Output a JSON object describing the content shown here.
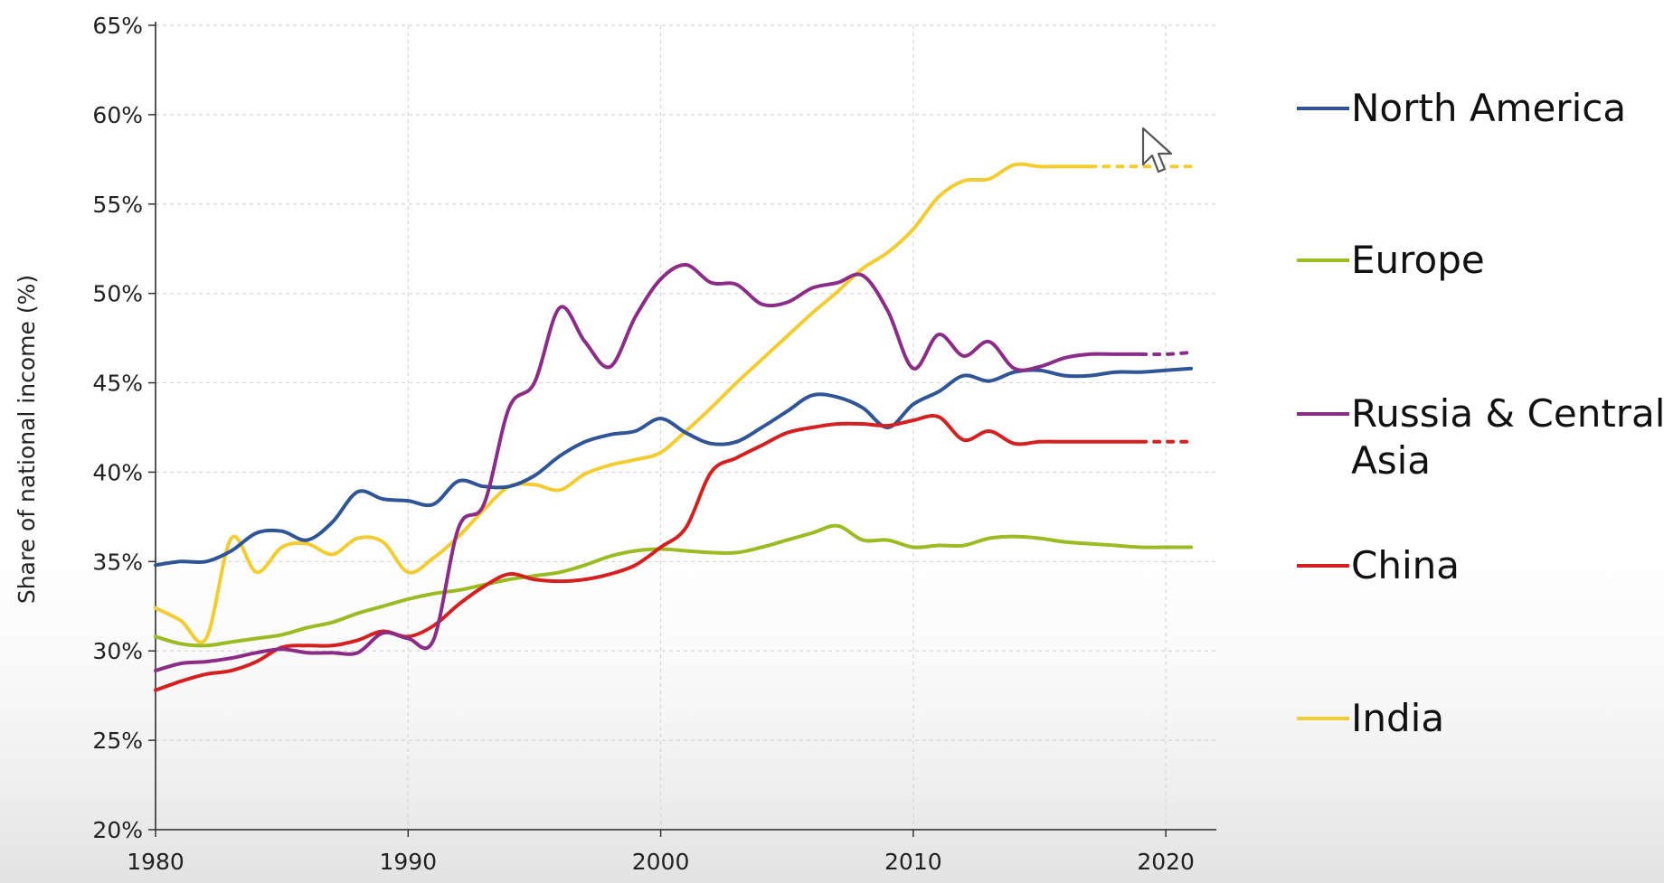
{
  "chart_data": {
    "type": "line",
    "title": "",
    "xlabel": "",
    "ylabel": "Share of national income (%)",
    "xlim": [
      1980,
      2022
    ],
    "ylim": [
      20,
      65
    ],
    "x_ticks": [
      "1980",
      "1990",
      "2000",
      "2010",
      "2020"
    ],
    "y_ticks": [
      "20%",
      "25%",
      "30%",
      "35%",
      "40%",
      "45%",
      "50%",
      "55%",
      "60%",
      "65%"
    ],
    "grid": true,
    "legend_position": "right",
    "series": [
      {
        "name": "North America",
        "color": "#2f5596",
        "x": [
          1980,
          1981,
          1982,
          1983,
          1984,
          1985,
          1986,
          1987,
          1988,
          1989,
          1990,
          1991,
          1992,
          1993,
          1994,
          1995,
          1996,
          1997,
          1998,
          1999,
          2000,
          2001,
          2002,
          2003,
          2004,
          2005,
          2006,
          2007,
          2008,
          2009,
          2010,
          2011,
          2012,
          2013,
          2014,
          2015,
          2016,
          2017,
          2018,
          2019,
          2020,
          2021
        ],
        "y": [
          34.8,
          35.0,
          35.0,
          35.6,
          36.6,
          36.7,
          36.2,
          37.2,
          38.9,
          38.5,
          38.4,
          38.2,
          39.5,
          39.2,
          39.2,
          39.8,
          40.9,
          41.7,
          42.1,
          42.3,
          43.0,
          42.2,
          41.6,
          41.7,
          42.5,
          43.4,
          44.3,
          44.2,
          43.6,
          42.5,
          43.8,
          44.5,
          45.4,
          45.1,
          45.6,
          45.7,
          45.4,
          45.4,
          45.6,
          45.6,
          45.7,
          45.8
        ],
        "projection_from": null
      },
      {
        "name": "Europe",
        "color": "#9bbb22",
        "x": [
          1980,
          1981,
          1982,
          1983,
          1984,
          1985,
          1986,
          1987,
          1988,
          1989,
          1990,
          1991,
          1992,
          1993,
          1994,
          1995,
          1996,
          1997,
          1998,
          1999,
          2000,
          2001,
          2002,
          2003,
          2004,
          2005,
          2006,
          2007,
          2008,
          2009,
          2010,
          2011,
          2012,
          2013,
          2014,
          2015,
          2016,
          2017,
          2018,
          2019,
          2020,
          2021
        ],
        "y": [
          30.8,
          30.4,
          30.3,
          30.5,
          30.7,
          30.9,
          31.3,
          31.6,
          32.1,
          32.5,
          32.9,
          33.2,
          33.4,
          33.7,
          34.0,
          34.2,
          34.4,
          34.8,
          35.3,
          35.6,
          35.7,
          35.6,
          35.5,
          35.5,
          35.8,
          36.2,
          36.6,
          37.0,
          36.2,
          36.2,
          35.8,
          35.9,
          35.9,
          36.3,
          36.4,
          36.3,
          36.1,
          36.0,
          35.9,
          35.8,
          35.8,
          35.8
        ],
        "projection_from": null
      },
      {
        "name": "Russia & Central Asia",
        "color": "#8b2c86",
        "x": [
          1980,
          1981,
          1982,
          1983,
          1984,
          1985,
          1986,
          1987,
          1988,
          1989,
          1990,
          1991,
          1992,
          1993,
          1994,
          1995,
          1996,
          1997,
          1998,
          1999,
          2000,
          2001,
          2002,
          2003,
          2004,
          2005,
          2006,
          2007,
          2008,
          2009,
          2010,
          2011,
          2012,
          2013,
          2014,
          2015,
          2016,
          2017,
          2018,
          2019,
          2020,
          2021
        ],
        "y": [
          28.9,
          29.3,
          29.4,
          29.6,
          29.9,
          30.1,
          29.9,
          29.9,
          29.9,
          31.0,
          30.7,
          30.6,
          36.9,
          38.2,
          43.6,
          45.0,
          49.2,
          47.3,
          45.9,
          48.7,
          50.8,
          51.6,
          50.6,
          50.5,
          49.4,
          49.5,
          50.3,
          50.6,
          51.0,
          49.0,
          45.8,
          47.7,
          46.5,
          47.3,
          45.8,
          45.9,
          46.4,
          46.6,
          46.6,
          46.6,
          46.6,
          46.7
        ],
        "projection_from": 2019
      },
      {
        "name": "China",
        "color": "#d42020",
        "x": [
          1980,
          1981,
          1982,
          1983,
          1984,
          1985,
          1986,
          1987,
          1988,
          1989,
          1990,
          1991,
          1992,
          1993,
          1994,
          1995,
          1996,
          1997,
          1998,
          1999,
          2000,
          2001,
          2002,
          2003,
          2004,
          2005,
          2006,
          2007,
          2008,
          2009,
          2010,
          2011,
          2012,
          2013,
          2014,
          2015,
          2016,
          2017,
          2018,
          2019,
          2020,
          2021
        ],
        "y": [
          27.8,
          28.3,
          28.7,
          28.9,
          29.4,
          30.2,
          30.3,
          30.3,
          30.6,
          31.1,
          30.8,
          31.4,
          32.6,
          33.6,
          34.3,
          34.0,
          33.9,
          34.0,
          34.3,
          34.8,
          35.8,
          36.9,
          40.0,
          40.8,
          41.5,
          42.2,
          42.5,
          42.7,
          42.7,
          42.6,
          42.9,
          43.1,
          41.8,
          42.3,
          41.6,
          41.7,
          41.7,
          41.7,
          41.7,
          41.7,
          41.7,
          41.7
        ],
        "projection_from": 2019
      },
      {
        "name": "India",
        "color": "#f2cc30",
        "x": [
          1980,
          1981,
          1982,
          1983,
          1984,
          1985,
          1986,
          1987,
          1988,
          1989,
          1990,
          1991,
          1992,
          1993,
          1994,
          1995,
          1996,
          1997,
          1998,
          1999,
          2000,
          2001,
          2002,
          2003,
          2004,
          2005,
          2006,
          2007,
          2008,
          2009,
          2010,
          2011,
          2012,
          2013,
          2014,
          2015,
          2016,
          2017,
          2018,
          2019,
          2020,
          2021
        ],
        "y": [
          32.4,
          31.7,
          30.7,
          36.3,
          34.4,
          35.8,
          36.0,
          35.4,
          36.3,
          36.1,
          34.4,
          35.2,
          36.4,
          37.9,
          39.2,
          39.3,
          39.0,
          39.9,
          40.4,
          40.7,
          41.1,
          42.3,
          43.6,
          45.0,
          46.3,
          47.6,
          48.9,
          50.1,
          51.4,
          52.3,
          53.6,
          55.4,
          56.3,
          56.4,
          57.2,
          57.1,
          57.1,
          57.1,
          57.1,
          57.1,
          57.1,
          57.1
        ],
        "projection_from": 2017
      }
    ]
  }
}
